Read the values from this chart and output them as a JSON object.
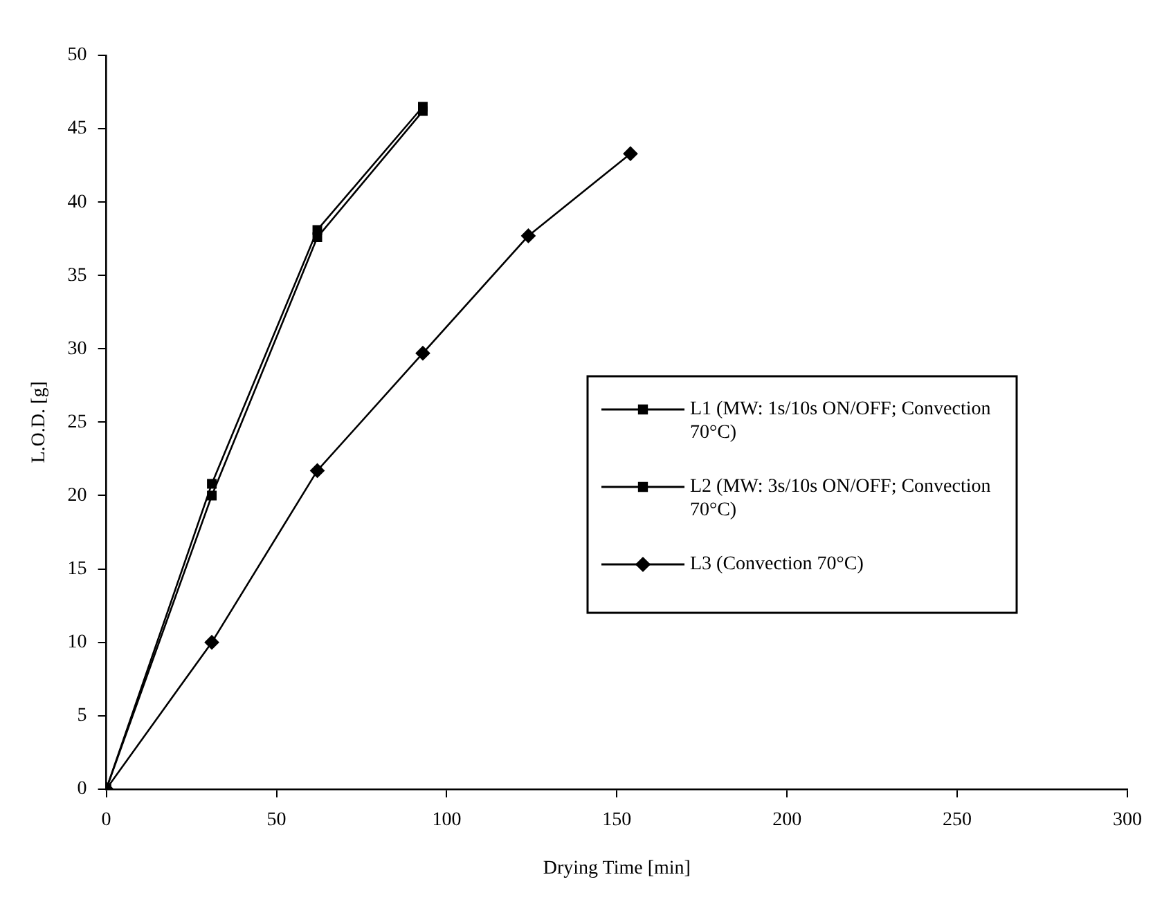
{
  "chart_data": {
    "type": "line",
    "xlabel": "Drying Time [min]",
    "ylabel": "L.O.D. [g]",
    "xlim": [
      0,
      300
    ],
    "xticks": [
      0,
      50,
      100,
      150,
      200,
      250,
      300
    ],
    "ylim": [
      0,
      50
    ],
    "yticks": [
      0,
      5,
      10,
      15,
      20,
      25,
      30,
      35,
      40,
      45,
      50
    ],
    "grid": false,
    "legend": "right",
    "line_style": "solid",
    "series": [
      {
        "name": "L1 (MW: 1s/10s ON/OFF; Convection 70°C)",
        "color": "#000000",
        "marker": "square",
        "x": [
          0,
          31,
          62,
          93
        ],
        "values": [
          0,
          20,
          37.6,
          46.2
        ]
      },
      {
        "name": "L2 (MW: 3s/10s ON/OFF; Convection 70°C)",
        "color": "#000000",
        "marker": "square",
        "x": [
          0,
          31,
          62,
          93
        ],
        "values": [
          0,
          20.8,
          38.1,
          46.5
        ]
      },
      {
        "name": "L3 (Convection 70°C)",
        "color": "#000000",
        "marker": "diamond",
        "x": [
          0,
          31,
          62,
          93,
          124,
          154
        ],
        "values": [
          0,
          10,
          21.7,
          29.7,
          37.7,
          43.3
        ]
      }
    ]
  }
}
